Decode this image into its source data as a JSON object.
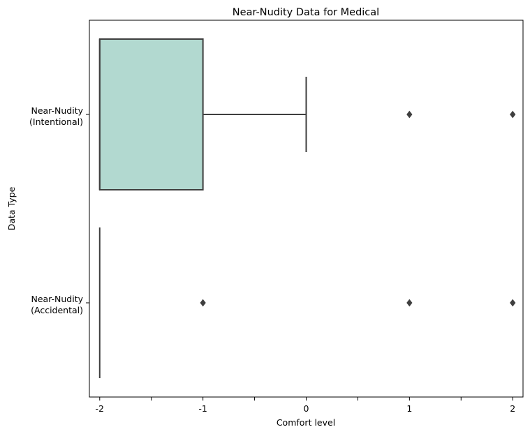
{
  "chart_data": {
    "type": "boxplot",
    "orientation": "horizontal",
    "title": "Near-Nudity Data for Medical",
    "xlabel": "Comfort level",
    "ylabel": "Data Type",
    "xlim": [
      -2.1,
      2.1
    ],
    "x_ticks": [
      {
        "value": -2,
        "label": "-2"
      },
      {
        "value": -1.5,
        "label": ""
      },
      {
        "value": -1,
        "label": "-1"
      },
      {
        "value": -0.5,
        "label": ""
      },
      {
        "value": 0,
        "label": "0"
      },
      {
        "value": 0.5,
        "label": ""
      },
      {
        "value": 1,
        "label": "1"
      },
      {
        "value": 1.5,
        "label": ""
      },
      {
        "value": 2,
        "label": "2"
      }
    ],
    "grid": false,
    "colors": {
      "box_fill": "#b2d9d0",
      "line": "#3f3f3f"
    },
    "categories": [
      {
        "label_lines": [
          "Near-Nudity",
          "(Intentional)"
        ],
        "whisker_low": -2,
        "q1": -2,
        "median": -2,
        "q3": -1,
        "whisker_high": 0,
        "outliers": [
          1,
          2
        ]
      },
      {
        "label_lines": [
          "Near-Nudity",
          "(Accidental)"
        ],
        "whisker_low": -2,
        "q1": -2,
        "median": -2,
        "q3": -2,
        "whisker_high": -2,
        "outliers": [
          -1,
          1,
          2
        ]
      }
    ]
  }
}
